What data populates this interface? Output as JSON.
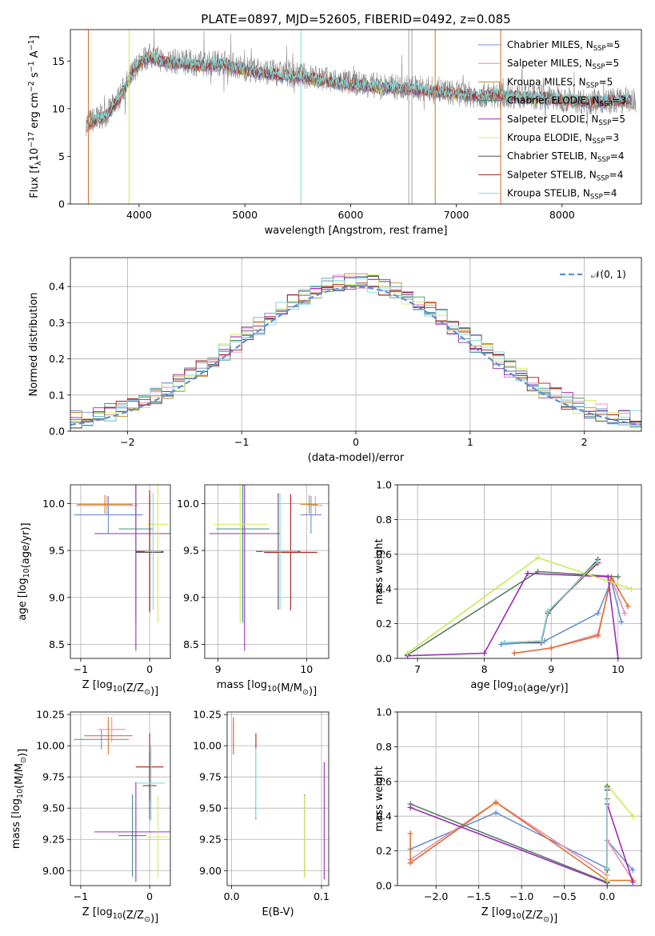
{
  "figure": {
    "title": "PLATE=0897, MJD=52605, FIBERID=0492, z=0.085"
  },
  "series_styles": [
    {
      "name": "Chabrier MILES, N_SSP=5",
      "label_base": "Chabrier MILES, N",
      "label_sub": "SSP",
      "label_tail": "=5",
      "color": "#6b8fd8"
    },
    {
      "name": "Salpeter MILES, N_SSP=5",
      "label_base": "Salpeter MILES, N",
      "label_sub": "SSP",
      "label_tail": "=5",
      "color": "#e88db0"
    },
    {
      "name": "Kroupa MILES, N_SSP=5",
      "label_base": "Kroupa MILES, N",
      "label_sub": "SSP",
      "label_tail": "=5",
      "color": "#c98a1e"
    },
    {
      "name": "Chabrier ELODIE, N_SSP=3",
      "label_base": "Chabrier ELODIE, N",
      "label_sub": "SSP",
      "label_tail": "=3",
      "color": "#3d8f8a"
    },
    {
      "name": "Salpeter ELODIE, N_SSP=5",
      "label_base": "Salpeter ELODIE, N",
      "label_sub": "SSP",
      "label_tail": "=5",
      "color": "#9a2db8"
    },
    {
      "name": "Kroupa ELODIE, N_SSP=3",
      "label_base": "Kroupa ELODIE, N",
      "label_sub": "SSP",
      "label_tail": "=3",
      "color": "#d4ec5a"
    },
    {
      "name": "Chabrier STELIB, N_SSP=4",
      "label_base": "Chabrier STELIB, N",
      "label_sub": "SSP",
      "label_tail": "=4",
      "color": "#555555"
    },
    {
      "name": "Salpeter STELIB, N_SSP=4",
      "label_base": "Salpeter STELIB, N",
      "label_sub": "SSP",
      "label_tail": "=4",
      "color": "#b01a1a"
    },
    {
      "name": "Kroupa STELIB, N_SSP=4",
      "label_base": "Kroupa STELIB, N",
      "label_sub": "SSP",
      "label_tail": "=4",
      "color": "#7fdbe0"
    }
  ],
  "chart_data": [
    {
      "id": "spectrum",
      "type": "line",
      "title": "PLATE=0897, MJD=52605, FIBERID=0492, z=0.085",
      "xlabel": "wavelength [Angstrom, rest frame]",
      "ylabel": "Flux [f_λ 10^-17 erg cm^-2 s^-1 A^-1]",
      "ylabel_parts": {
        "a": "Flux [f",
        "a_sub": "λ",
        "b": "10",
        "b_sup": "−17",
        "c": " erg cm",
        "c_sup": "−2",
        "d": " s",
        "d_sup": "−1",
        "e": " A",
        "e_sup": "−1",
        "f": "]"
      },
      "xlim": [
        3350,
        8750
      ],
      "ylim": [
        0,
        18.3
      ],
      "xticks": [
        4000,
        5000,
        6000,
        7000,
        8000
      ],
      "yticks": [
        0,
        5,
        10,
        15
      ],
      "grid": false,
      "legend": "upper right",
      "observed_envelope": {
        "x": [
          3500,
          3600,
          3700,
          3800,
          3900,
          4000,
          4100,
          4200,
          4300,
          4400,
          4500,
          4600,
          4700,
          4800,
          4900,
          5000,
          5200,
          5400,
          5600,
          5800,
          6000,
          6200,
          6400,
          6600,
          6800,
          7000,
          7200,
          7400,
          7600,
          7800,
          8000,
          8200,
          8400,
          8600,
          8700
        ],
        "y": [
          8.5,
          9.0,
          9.5,
          11.0,
          13.0,
          15.0,
          15.5,
          15.2,
          15.0,
          14.9,
          14.8,
          14.7,
          14.8,
          14.9,
          14.5,
          14.2,
          13.9,
          13.6,
          13.4,
          13.0,
          12.7,
          12.5,
          12.3,
          12.2,
          12.0,
          11.6,
          11.4,
          11.5,
          11.3,
          11.2,
          11.0,
          10.8,
          10.8,
          10.9,
          10.8
        ]
      },
      "model_envelope": {
        "x": [
          3500,
          3600,
          3700,
          3800,
          3900,
          4000,
          4100,
          4200,
          4300,
          4400,
          4500,
          4600,
          4700,
          4800,
          4900,
          5000,
          5200,
          5400,
          5600,
          5800,
          6000,
          6200,
          6400,
          6600,
          6800,
          7000,
          7200,
          7400,
          7600,
          7800,
          8000,
          8200,
          8400,
          8600
        ],
        "y": [
          8.2,
          8.8,
          9.3,
          10.8,
          12.8,
          14.8,
          15.4,
          15.0,
          14.8,
          14.7,
          14.6,
          14.5,
          14.6,
          14.7,
          14.3,
          14.0,
          13.7,
          13.4,
          13.2,
          12.8,
          12.5,
          12.3,
          12.2,
          12.0,
          11.8,
          11.5,
          11.3,
          11.4,
          11.2,
          11.1,
          10.9,
          10.7,
          10.7,
          10.8
        ]
      },
      "masked_pixels": [
        {
          "x": 3520,
          "color": "#e07030"
        },
        {
          "x": 3905,
          "color": "#d4ec5a"
        },
        {
          "x": 5530,
          "color": "#7fdbe0"
        },
        {
          "x": 6550,
          "color": "#aaaaaa"
        },
        {
          "x": 6580,
          "color": "#aaaaaa"
        },
        {
          "x": 6800,
          "color": "#c98a1e"
        },
        {
          "x": 7420,
          "color": "#e07030"
        }
      ],
      "series": [
        {
          "name": "Chabrier MILES, N_SSP=5"
        },
        {
          "name": "Salpeter MILES, N_SSP=5"
        },
        {
          "name": "Kroupa MILES, N_SSP=5"
        },
        {
          "name": "Chabrier ELODIE, N_SSP=3"
        },
        {
          "name": "Salpeter ELODIE, N_SSP=5"
        },
        {
          "name": "Kroupa ELODIE, N_SSP=3"
        },
        {
          "name": "Chabrier STELIB, N_SSP=4"
        },
        {
          "name": "Salpeter STELIB, N_SSP=4"
        },
        {
          "name": "Kroupa STELIB, N_SSP=4"
        }
      ]
    },
    {
      "id": "residuals",
      "type": "line",
      "xlabel": "(data-model)/error",
      "ylabel": "Normed distribution",
      "xlim": [
        -2.5,
        2.5
      ],
      "ylim": [
        0,
        0.48
      ],
      "xticks": [
        -2,
        -1,
        0,
        1,
        2
      ],
      "yticks": [
        0.0,
        0.1,
        0.2,
        0.3,
        0.4
      ],
      "grid": true,
      "legend": "upper right",
      "legend_label": "𝒩(0, 1)",
      "gaussian": {
        "mean": 0,
        "sigma": 1,
        "color": "#5b8fd6"
      },
      "bin_width": 0.1,
      "histogram_amplitude": 0.4
    },
    {
      "id": "age_vs_Z",
      "type": "scatter",
      "xlabel": "Z [log10(Z/Z⊙)]",
      "ylabel": "age [log10(age/yr)]",
      "xlim": [
        -1.15,
        0.3
      ],
      "ylim": [
        8.35,
        10.2
      ],
      "xticks": [
        -1,
        0
      ],
      "yticks": [
        8.5,
        9.0,
        9.5,
        10.0
      ],
      "grid": true,
      "points": [
        {
          "x": -0.6,
          "y": 9.88,
          "xerr": 0.5,
          "yerr": 0.2,
          "color": "#6b8fd8"
        },
        {
          "x": -0.62,
          "y": 9.98,
          "xerr": 0.45,
          "yerr": 0.1,
          "color": "#e88db0"
        },
        {
          "x": -0.65,
          "y": 9.99,
          "xerr": 0.4,
          "yerr": 0.1,
          "color": "#c98a1e"
        },
        {
          "x": -0.2,
          "y": 9.73,
          "xerr": 0.25,
          "yerr": 1.0,
          "color": "#3d8f8a"
        },
        {
          "x": -0.2,
          "y": 9.68,
          "xerr": 0.6,
          "yerr": 1.25,
          "color": "#9a2db8"
        },
        {
          "x": 0.12,
          "y": 9.78,
          "xerr": 0.15,
          "yerr": 1.05,
          "color": "#d4ec5a"
        },
        {
          "x": 0.0,
          "y": 9.48,
          "xerr": 0.2,
          "yerr": 0.62,
          "color": "#555555"
        },
        {
          "x": 0.0,
          "y": 9.49,
          "xerr": 0.2,
          "yerr": 0.65,
          "color": "#b01a1a"
        },
        {
          "x": 0.05,
          "y": 9.49,
          "xerr": 0.12,
          "yerr": 0.62,
          "color": "#7fdbe0"
        }
      ]
    },
    {
      "id": "age_vs_mass",
      "type": "scatter",
      "xlabel": "mass [log10(M/M⊙)]",
      "ylabel": "",
      "xlim": [
        8.85,
        10.25
      ],
      "ylim": [
        8.35,
        10.2
      ],
      "xticks": [
        9,
        10
      ],
      "yticks": [
        8.5,
        9.0,
        9.5,
        10.0
      ],
      "grid": true,
      "points": [
        {
          "x": 10.05,
          "y": 9.88,
          "xerr": 0.12,
          "yerr": 0.2,
          "color": "#6b8fd8"
        },
        {
          "x": 10.1,
          "y": 9.98,
          "xerr": 0.08,
          "yerr": 0.1,
          "color": "#e88db0"
        },
        {
          "x": 10.03,
          "y": 9.99,
          "xerr": 0.1,
          "yerr": 0.1,
          "color": "#c98a1e"
        },
        {
          "x": 9.28,
          "y": 9.73,
          "xerr": 0.3,
          "yerr": 1.0,
          "color": "#3d8f8a"
        },
        {
          "x": 9.3,
          "y": 9.68,
          "xerr": 0.4,
          "yerr": 1.25,
          "color": "#9a2db8"
        },
        {
          "x": 9.25,
          "y": 9.78,
          "xerr": 0.3,
          "yerr": 1.05,
          "color": "#d4ec5a"
        },
        {
          "x": 9.68,
          "y": 9.49,
          "xerr": 0.25,
          "yerr": 0.62,
          "color": "#555555"
        },
        {
          "x": 9.82,
          "y": 9.48,
          "xerr": 0.3,
          "yerr": 0.62,
          "color": "#b01a1a"
        },
        {
          "x": 9.7,
          "y": 9.49,
          "xerr": 0.2,
          "yerr": 0.62,
          "color": "#7fdbe0"
        }
      ]
    },
    {
      "id": "mass_weight_vs_age",
      "type": "line",
      "xlabel": "age [log10(age/yr)]",
      "ylabel": "mass weight",
      "xlim": [
        6.7,
        10.35
      ],
      "ylim": [
        0,
        1.0
      ],
      "xticks": [
        7,
        8,
        9,
        10
      ],
      "yticks": [
        0.0,
        0.2,
        0.4,
        0.6,
        0.8,
        1.0
      ],
      "grid": true,
      "series": [
        {
          "name": "Chabrier MILES, N_SSP=5",
          "x": [
            8.25,
            8.9,
            9.7,
            9.9,
            10.05
          ],
          "y": [
            0.08,
            0.1,
            0.26,
            0.45,
            0.21
          ],
          "color": "#6b8fd8"
        },
        {
          "name": "Salpeter MILES, N_SSP=5",
          "x": [
            8.45,
            9.0,
            9.7,
            9.9,
            10.1
          ],
          "y": [
            0.03,
            0.06,
            0.14,
            0.46,
            0.26
          ],
          "color": "#e88db0"
        },
        {
          "name": "Kroupa MILES, N_SSP=5",
          "x": [
            8.45,
            9.0,
            9.7,
            9.9,
            10.15
          ],
          "y": [
            0.03,
            0.06,
            0.13,
            0.47,
            0.3
          ],
          "color": "#e07030"
        },
        {
          "name": "Chabrier ELODIE, N_SSP=3",
          "x": [
            6.85,
            8.8,
            10.0
          ],
          "y": [
            0.02,
            0.5,
            0.47
          ],
          "color": "#5b7f64"
        },
        {
          "name": "Salpeter ELODIE, N_SSP=5",
          "x": [
            6.85,
            8.0,
            8.65,
            9.85,
            10.0
          ],
          "y": [
            0.015,
            0.03,
            0.49,
            0.47,
            0.0
          ],
          "color": "#9a2db8"
        },
        {
          "name": "Kroupa ELODIE, N_SSP=3",
          "x": [
            6.85,
            8.8,
            10.2
          ],
          "y": [
            0.03,
            0.58,
            0.4
          ],
          "color": "#c8ec50"
        },
        {
          "name": "Chabrier STELIB, N_SSP=4",
          "x": [
            8.3,
            8.85,
            8.95,
            9.7
          ],
          "y": [
            0.09,
            0.09,
            0.26,
            0.57
          ],
          "color": "#555555"
        },
        {
          "name": "Salpeter STELIB, N_SSP=4",
          "x": [
            8.3,
            8.85,
            8.95,
            9.7
          ],
          "y": [
            0.09,
            0.1,
            0.27,
            0.55
          ],
          "color": "#b01a1a"
        },
        {
          "name": "Kroupa STELIB, N_SSP=4",
          "x": [
            8.3,
            8.85,
            8.95,
            9.7
          ],
          "y": [
            0.09,
            0.1,
            0.27,
            0.56
          ],
          "color": "#7fdbe0"
        }
      ]
    },
    {
      "id": "mass_vs_Z",
      "type": "scatter",
      "xlabel": "Z [log10(Z/Z⊙)]",
      "ylabel": "mass [log10(M/M⊙)]",
      "xlim": [
        -1.15,
        0.3
      ],
      "ylim": [
        8.88,
        10.27
      ],
      "xticks": [
        -1,
        0
      ],
      "yticks": [
        9.0,
        9.25,
        9.5,
        9.75,
        10.0,
        10.25
      ],
      "grid": true,
      "points": [
        {
          "x": -0.7,
          "y": 10.05,
          "xerr": 0.4,
          "yerr": 0.08,
          "color": "#6b8fd8"
        },
        {
          "x": -0.55,
          "y": 10.13,
          "xerr": 0.2,
          "yerr": 0.1,
          "color": "#e88db0"
        },
        {
          "x": -0.6,
          "y": 10.08,
          "xerr": 0.35,
          "yerr": 0.15,
          "color": "#e07030"
        },
        {
          "x": -0.25,
          "y": 9.28,
          "xerr": 0.2,
          "yerr": 0.33,
          "color": "#3d8f8a"
        },
        {
          "x": -0.2,
          "y": 9.31,
          "xerr": 0.6,
          "yerr": 0.4,
          "color": "#9a2db8"
        },
        {
          "x": 0.12,
          "y": 9.27,
          "xerr": 0.15,
          "yerr": 0.33,
          "color": "#d4ec5a"
        },
        {
          "x": 0.0,
          "y": 9.68,
          "xerr": 0.1,
          "yerr": 0.27,
          "color": "#555555"
        },
        {
          "x": 0.0,
          "y": 9.83,
          "xerr": 0.2,
          "yerr": 0.27,
          "color": "#b01a1a"
        },
        {
          "x": 0.02,
          "y": 9.7,
          "xerr": 0.2,
          "yerr": 0.3,
          "color": "#7fdbe0"
        }
      ]
    },
    {
      "id": "mass_vs_ebv",
      "type": "scatter",
      "xlabel": "E(B-V)",
      "ylabel": "",
      "xlim": [
        -0.005,
        0.108
      ],
      "ylim": [
        8.88,
        10.27
      ],
      "xticks": [
        0.0,
        0.1
      ],
      "yticks": [
        9.0,
        9.25,
        9.5,
        9.75,
        10.0,
        10.25
      ],
      "grid": true,
      "points": [
        {
          "x": 0.002,
          "y": 10.05,
          "xerr": 0,
          "yerr": 0.12,
          "color": "#6b8fd8"
        },
        {
          "x": 0.002,
          "y": 10.1,
          "xerr": 0,
          "yerr": 0.12,
          "color": "#e88db0"
        },
        {
          "x": 0.002,
          "y": 10.08,
          "xerr": 0,
          "yerr": 0.15,
          "color": "#e07030"
        },
        {
          "x": 0.027,
          "y": 9.68,
          "xerr": 0,
          "yerr": 0.27,
          "color": "#555555"
        },
        {
          "x": 0.027,
          "y": 9.76,
          "xerr": 0,
          "yerr": 0.34,
          "color": "#b01a1a"
        },
        {
          "x": 0.027,
          "y": 9.7,
          "xerr": 0,
          "yerr": 0.28,
          "color": "#7fdbe0"
        },
        {
          "x": 0.081,
          "y": 9.28,
          "xerr": 0,
          "yerr": 0.33,
          "color": "#3d8f8a"
        },
        {
          "x": 0.081,
          "y": 9.27,
          "xerr": 0,
          "yerr": 0.33,
          "color": "#d4ec5a"
        },
        {
          "x": 0.103,
          "y": 9.4,
          "xerr": 0,
          "yerr": 0.47,
          "color": "#9a2db8"
        }
      ]
    },
    {
      "id": "mass_weight_vs_Z",
      "type": "line",
      "xlabel": "Z [log10(Z/Z⊙)]",
      "ylabel": "mass weight",
      "xlim": [
        -2.45,
        0.4
      ],
      "ylim": [
        0,
        1.0
      ],
      "xticks": [
        -2.0,
        -1.5,
        -1.0,
        -0.5,
        0.0
      ],
      "yticks": [
        0.0,
        0.2,
        0.4,
        0.6,
        0.8,
        1.0
      ],
      "grid": true,
      "series": [
        {
          "name": "Chabrier MILES, N_SSP=5",
          "x": [
            -2.3,
            -1.3,
            0.0,
            0.0,
            0.3
          ],
          "y": [
            0.21,
            0.42,
            0.1,
            0.26,
            0.09
          ],
          "color": "#6b8fd8"
        },
        {
          "name": "Salpeter MILES, N_SSP=5",
          "x": [
            -2.3,
            -1.3,
            0.0,
            0.0,
            0.3
          ],
          "y": [
            0.15,
            0.48,
            0.06,
            0.26,
            0.03
          ],
          "color": "#e88db0"
        },
        {
          "name": "Kroupa MILES, N_SSP=5",
          "x": [
            -2.3,
            -2.3,
            -1.3,
            0.0,
            0.3
          ],
          "y": [
            0.3,
            0.13,
            0.48,
            0.03,
            0.03
          ],
          "color": "#e07030"
        },
        {
          "name": "Chabrier ELODIE, N_SSP=3",
          "x": [
            -2.3,
            0.0,
            0.0
          ],
          "y": [
            0.47,
            0.02,
            0.5
          ],
          "color": "#5b7f64"
        },
        {
          "name": "Salpeter ELODIE, N_SSP=5",
          "x": [
            -2.3,
            0.0,
            0.0,
            0.3
          ],
          "y": [
            0.45,
            0.015,
            0.47,
            0.02
          ],
          "color": "#9a2db8"
        },
        {
          "name": "Kroupa ELODIE, N_SSP=3",
          "x": [
            0.0,
            0.0,
            0.3
          ],
          "y": [
            0.03,
            0.58,
            0.4
          ],
          "color": "#c8ec50"
        },
        {
          "name": "Chabrier STELIB, N_SSP=4",
          "x": [
            0.0,
            0.0
          ],
          "y": [
            0.09,
            0.57
          ],
          "color": "#555555"
        },
        {
          "name": "Salpeter STELIB, N_SSP=4",
          "x": [
            0.0,
            0.0
          ],
          "y": [
            0.1,
            0.55
          ],
          "color": "#b01a1a"
        },
        {
          "name": "Kroupa STELIB, N_SSP=4",
          "x": [
            0.0,
            0.0
          ],
          "y": [
            0.1,
            0.56
          ],
          "color": "#7fdbe0"
        }
      ]
    }
  ]
}
